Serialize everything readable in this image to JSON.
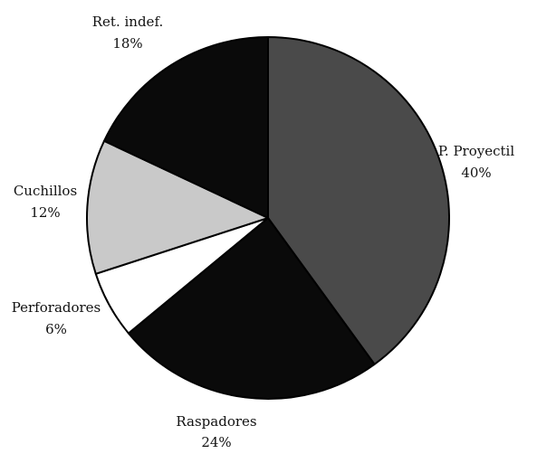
{
  "chart_data": {
    "type": "pie",
    "title": "",
    "start": "12 o'clock",
    "direction": "clockwise",
    "slices": [
      {
        "label": "P. Proyectil",
        "value": 40,
        "value_label": "40%",
        "color": "#4a4a4a"
      },
      {
        "label": "Raspadores",
        "value": 24,
        "value_label": "24%",
        "color": "#0a0a0a"
      },
      {
        "label": "Perforadores",
        "value": 6,
        "value_label": "6%",
        "color": "#ffffff"
      },
      {
        "label": "Cuchillos",
        "value": 12,
        "value_label": "12%",
        "color": "#c9c9c9"
      },
      {
        "label": "Ret. indef.",
        "value": 18,
        "value_label": "18%",
        "color": "#0a0a0a"
      }
    ],
    "slice_border_color": "#000000"
  }
}
